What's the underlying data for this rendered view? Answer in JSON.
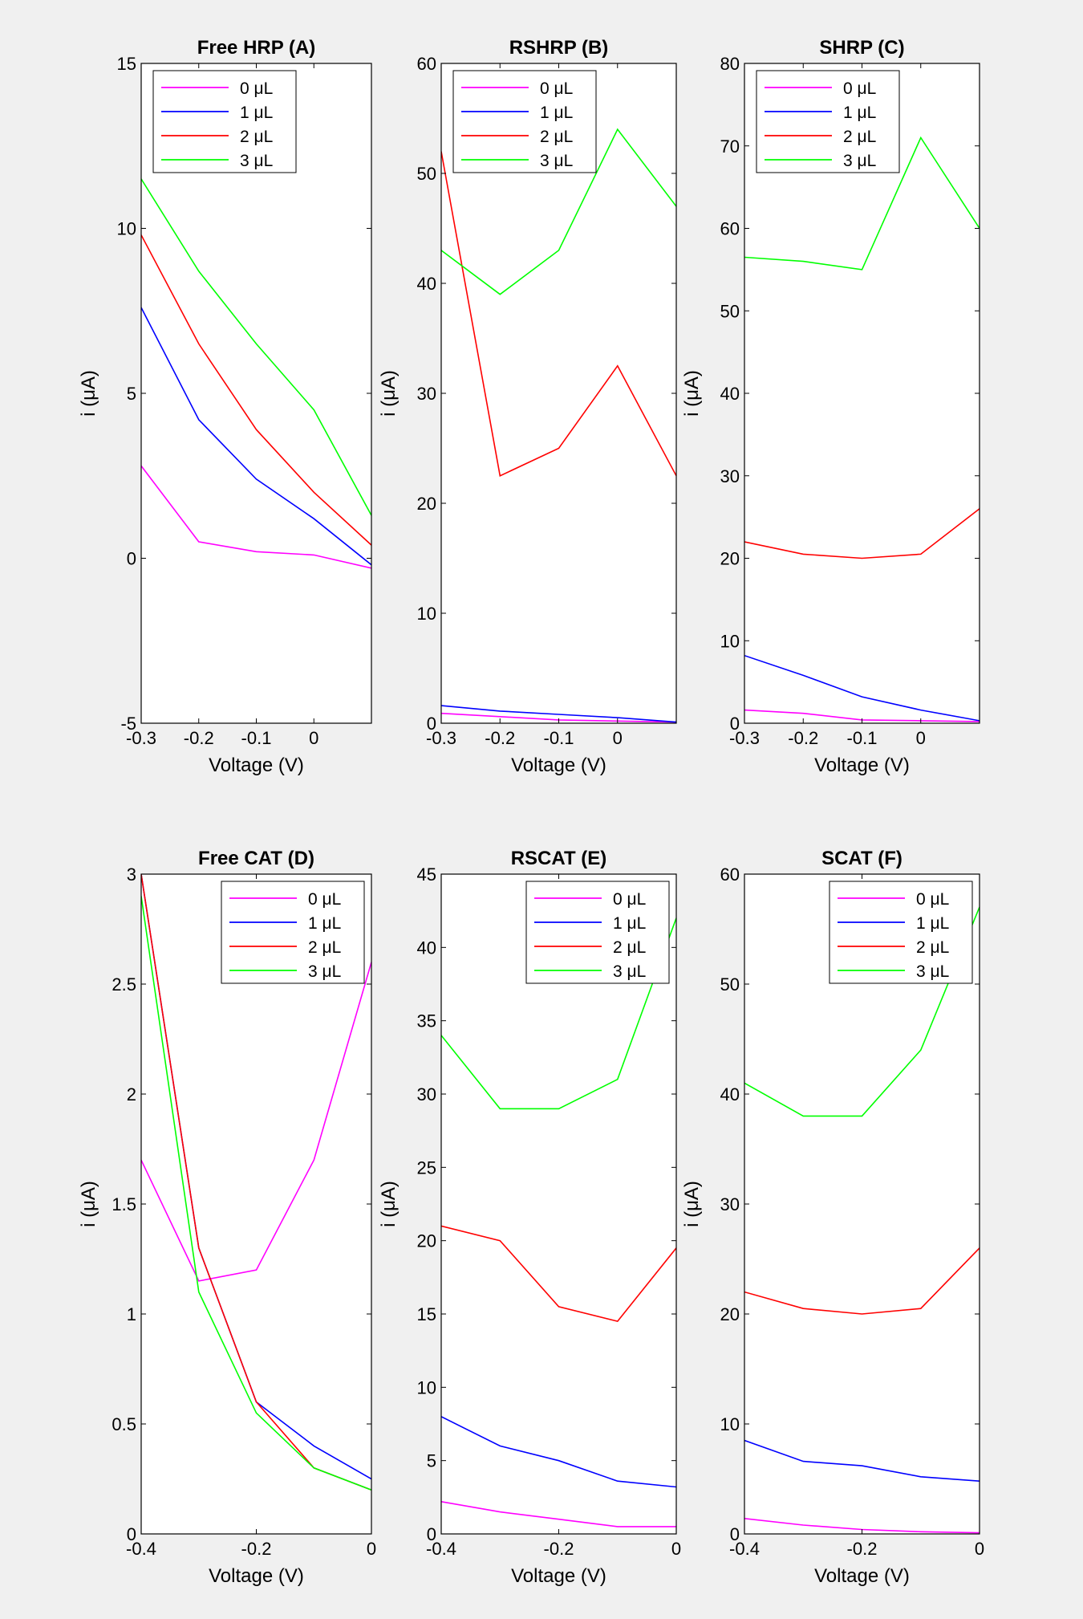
{
  "chart_data": [
    {
      "type": "line",
      "title": "Free HRP (A)",
      "xlabel": "Voltage (V)",
      "ylabel": "i (μA)",
      "xlim": [
        -0.3,
        0.1
      ],
      "ylim": [
        -5,
        15
      ],
      "xticks": [
        -0.3,
        -0.2,
        -0.1,
        0
      ],
      "xtick_labels": [
        "-0.3",
        "-0.2",
        "-0.1",
        "0"
      ],
      "yticks": [
        -5,
        0,
        5,
        10,
        15
      ],
      "ytick_labels": [
        "-5",
        "0",
        "5",
        "10",
        "15"
      ],
      "legend_position": "top-left",
      "x": [
        -0.3,
        -0.2,
        -0.1,
        0,
        0.1
      ],
      "series": [
        {
          "name": "0 μL",
          "color": "#ff00ff",
          "values": [
            2.8,
            0.5,
            0.2,
            0.1,
            -0.3
          ]
        },
        {
          "name": "1 μL",
          "color": "#0000ff",
          "values": [
            7.6,
            4.2,
            2.4,
            1.2,
            -0.2
          ]
        },
        {
          "name": "2 μL",
          "color": "#ff0000",
          "values": [
            9.8,
            6.5,
            3.9,
            2.0,
            0.4
          ]
        },
        {
          "name": "3 μL",
          "color": "#00ff00",
          "values": [
            11.5,
            8.7,
            6.5,
            4.5,
            1.3
          ]
        }
      ]
    },
    {
      "type": "line",
      "title": "RSHRP (B)",
      "xlabel": "Voltage (V)",
      "ylabel": "i (μA)",
      "xlim": [
        -0.3,
        0.1
      ],
      "ylim": [
        0,
        60
      ],
      "xticks": [
        -0.3,
        -0.2,
        -0.1,
        0
      ],
      "xtick_labels": [
        "-0.3",
        "-0.2",
        "-0.1",
        "0"
      ],
      "yticks": [
        0,
        10,
        20,
        30,
        40,
        50,
        60
      ],
      "ytick_labels": [
        "0",
        "10",
        "20",
        "30",
        "40",
        "50",
        "60"
      ],
      "legend_position": "top-left",
      "x": [
        -0.3,
        -0.2,
        -0.1,
        0,
        0.1
      ],
      "series": [
        {
          "name": "0 μL",
          "color": "#ff00ff",
          "values": [
            0.9,
            0.6,
            0.3,
            0.2,
            0.1
          ]
        },
        {
          "name": "1 μL",
          "color": "#0000ff",
          "values": [
            1.6,
            1.1,
            0.8,
            0.5,
            0.1
          ]
        },
        {
          "name": "2 μL",
          "color": "#ff0000",
          "values": [
            52,
            22.5,
            25,
            32.5,
            22.5
          ]
        },
        {
          "name": "3 μL",
          "color": "#00ff00",
          "values": [
            43,
            39,
            43,
            54,
            47
          ]
        }
      ]
    },
    {
      "type": "line",
      "title": "SHRP (C)",
      "xlabel": "Voltage (V)",
      "ylabel": "i (μA)",
      "xlim": [
        -0.3,
        0.1
      ],
      "ylim": [
        0,
        80
      ],
      "xticks": [
        -0.3,
        -0.2,
        -0.1,
        0
      ],
      "xtick_labels": [
        "-0.3",
        "-0.2",
        "-0.1",
        "0"
      ],
      "yticks": [
        0,
        10,
        20,
        30,
        40,
        50,
        60,
        70,
        80
      ],
      "ytick_labels": [
        "0",
        "10",
        "20",
        "30",
        "40",
        "50",
        "60",
        "70",
        "80"
      ],
      "legend_position": "top-left",
      "x": [
        -0.3,
        -0.2,
        -0.1,
        0,
        0.1
      ],
      "series": [
        {
          "name": "0 μL",
          "color": "#ff00ff",
          "values": [
            1.6,
            1.2,
            0.4,
            0.3,
            0.2
          ]
        },
        {
          "name": "1 μL",
          "color": "#0000ff",
          "values": [
            8.2,
            5.8,
            3.2,
            1.6,
            0.3
          ]
        },
        {
          "name": "2 μL",
          "color": "#ff0000",
          "values": [
            22,
            20.5,
            20,
            20.5,
            26
          ]
        },
        {
          "name": "3 μL",
          "color": "#00ff00",
          "values": [
            56.5,
            56,
            55,
            71,
            60
          ]
        }
      ]
    },
    {
      "type": "line",
      "title": "Free CAT (D)",
      "xlabel": "Voltage (V)",
      "ylabel": "i (μA)",
      "xlim": [
        -0.4,
        0
      ],
      "ylim": [
        0,
        3
      ],
      "xticks": [
        -0.4,
        -0.2,
        0
      ],
      "xtick_labels": [
        "-0.4",
        "-0.2",
        "0"
      ],
      "yticks": [
        0,
        0.5,
        1,
        1.5,
        2,
        2.5,
        3
      ],
      "ytick_labels": [
        "0",
        "0.5",
        "1",
        "1.5",
        "2",
        "2.5",
        "3"
      ],
      "legend_position": "top-right",
      "x": [
        -0.4,
        -0.3,
        -0.2,
        -0.1,
        0
      ],
      "series": [
        {
          "name": "0 μL",
          "color": "#ff00ff",
          "values": [
            1.7,
            1.15,
            1.2,
            1.7,
            2.6
          ]
        },
        {
          "name": "1 μL",
          "color": "#0000ff",
          "values": [
            3.0,
            1.3,
            0.6,
            0.4,
            0.25
          ]
        },
        {
          "name": "2 μL",
          "color": "#ff0000",
          "values": [
            3.0,
            1.3,
            0.6,
            0.3,
            0.2
          ]
        },
        {
          "name": "3 μL",
          "color": "#00ff00",
          "values": [
            2.9,
            1.1,
            0.55,
            0.3,
            0.2
          ]
        }
      ]
    },
    {
      "type": "line",
      "title": "RSCAT (E)",
      "xlabel": "Voltage (V)",
      "ylabel": "i (μA)",
      "xlim": [
        -0.4,
        0
      ],
      "ylim": [
        0,
        45
      ],
      "xticks": [
        -0.4,
        -0.2,
        0
      ],
      "xtick_labels": [
        "-0.4",
        "-0.2",
        "0"
      ],
      "yticks": [
        0,
        5,
        10,
        15,
        20,
        25,
        30,
        35,
        40,
        45
      ],
      "ytick_labels": [
        "0",
        "5",
        "10",
        "15",
        "20",
        "25",
        "30",
        "35",
        "40",
        "45"
      ],
      "legend_position": "top-right",
      "x": [
        -0.4,
        -0.3,
        -0.2,
        -0.1,
        0
      ],
      "series": [
        {
          "name": "0 μL",
          "color": "#ff00ff",
          "values": [
            2.2,
            1.5,
            1.0,
            0.5,
            0.5
          ]
        },
        {
          "name": "1 μL",
          "color": "#0000ff",
          "values": [
            8,
            6,
            5,
            3.6,
            3.2
          ]
        },
        {
          "name": "2 μL",
          "color": "#ff0000",
          "values": [
            21,
            20,
            15.5,
            14.5,
            19.5
          ]
        },
        {
          "name": "3 μL",
          "color": "#00ff00",
          "values": [
            34,
            29,
            29,
            31,
            42
          ]
        }
      ]
    },
    {
      "type": "line",
      "title": "SCAT (F)",
      "xlabel": "Voltage (V)",
      "ylabel": "i (μA)",
      "xlim": [
        -0.4,
        0
      ],
      "ylim": [
        0,
        60
      ],
      "xticks": [
        -0.4,
        -0.2,
        0
      ],
      "xtick_labels": [
        "-0.4",
        "-0.2",
        "0"
      ],
      "yticks": [
        0,
        10,
        20,
        30,
        40,
        50,
        60
      ],
      "ytick_labels": [
        "0",
        "10",
        "20",
        "30",
        "40",
        "50",
        "60"
      ],
      "legend_position": "top-right",
      "x": [
        -0.4,
        -0.3,
        -0.2,
        -0.1,
        0
      ],
      "series": [
        {
          "name": "0 μL",
          "color": "#ff00ff",
          "values": [
            1.4,
            0.8,
            0.4,
            0.2,
            0.1
          ]
        },
        {
          "name": "1 μL",
          "color": "#0000ff",
          "values": [
            8.5,
            6.6,
            6.2,
            5.2,
            4.8
          ]
        },
        {
          "name": "2 μL",
          "color": "#ff0000",
          "values": [
            22,
            20.5,
            20,
            20.5,
            26
          ]
        },
        {
          "name": "3 μL",
          "color": "#00ff00",
          "values": [
            41,
            38,
            38,
            44,
            57
          ]
        }
      ]
    }
  ]
}
